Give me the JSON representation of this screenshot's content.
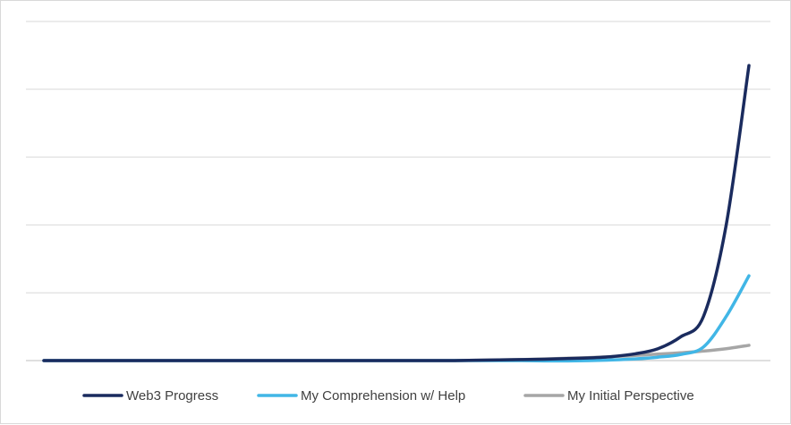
{
  "chart_data": {
    "type": "line",
    "title": "",
    "xlabel": "",
    "ylabel": "",
    "x": [
      1,
      2,
      3,
      4,
      5,
      6,
      7,
      8,
      9,
      10,
      11,
      12,
      13,
      14,
      15,
      16,
      17,
      18,
      19,
      20,
      21,
      22,
      23,
      24,
      25,
      26,
      27,
      28,
      29,
      30,
      31,
      32
    ],
    "ylim": [
      0,
      100
    ],
    "grid": true,
    "legend": "bottom",
    "series": [
      {
        "name": "Web3 Progress",
        "color": "#1a2b5e",
        "values": [
          0,
          0,
          0,
          0,
          0,
          0,
          0,
          0,
          0,
          0,
          0,
          0,
          0,
          0,
          0,
          0,
          0,
          0,
          0,
          0.1,
          0.2,
          0.3,
          0.4,
          0.6,
          0.8,
          1.2,
          2,
          3.5,
          7,
          13,
          40,
          87
        ]
      },
      {
        "name": "My Comprehension w/ Help",
        "color": "#41b6e6",
        "values": [
          0,
          0,
          0,
          0,
          0,
          0,
          0,
          0,
          0,
          0,
          0,
          0,
          0,
          0,
          0,
          0,
          0,
          0,
          0,
          0,
          0,
          0,
          -0.1,
          -0.1,
          0,
          0.2,
          0.5,
          1,
          1.8,
          4,
          13,
          25
        ]
      },
      {
        "name": "My Initial Perspective",
        "color": "#a6a6a6",
        "values": [
          0,
          0,
          0,
          0,
          0,
          0,
          0,
          0,
          0,
          0,
          0,
          0,
          0,
          0,
          0,
          0,
          0,
          0,
          0,
          0.1,
          0.2,
          0.3,
          0.5,
          0.7,
          0.9,
          1.2,
          1.5,
          1.9,
          2.3,
          2.8,
          3.5,
          4.5
        ]
      }
    ]
  }
}
